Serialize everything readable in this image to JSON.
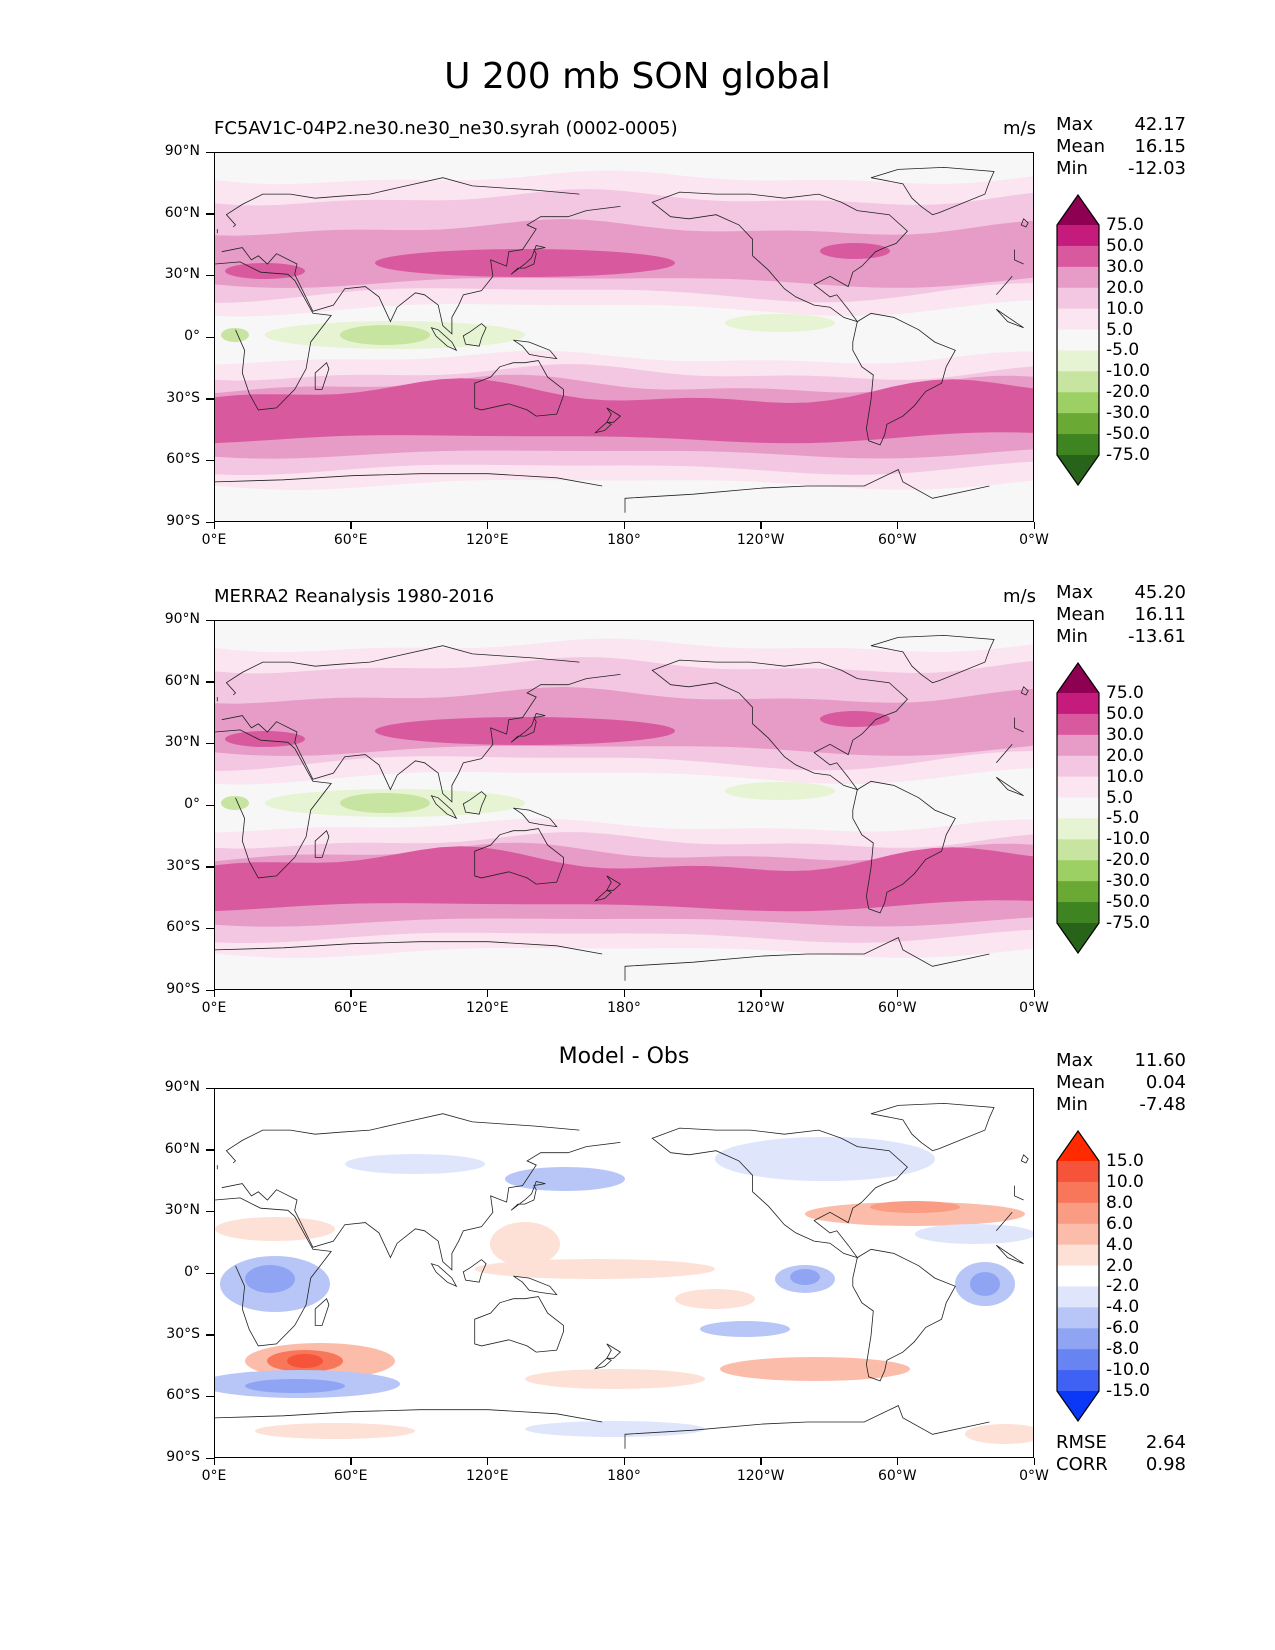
{
  "figure_title": "U 200 mb SON global",
  "panels": [
    {
      "id": "model",
      "title": "FC5AV1C-04P2.ne30.ne30_ne30.syrah (0002-0005)",
      "title_align": "left",
      "units": "m/s",
      "stats": [
        {
          "k": "Max",
          "v": "42.17"
        },
        {
          "k": "Mean",
          "v": "16.15"
        },
        {
          "k": "Min",
          "v": "-12.03"
        }
      ],
      "colorbar": {
        "levels": [
          "75.0",
          "50.0",
          "30.0",
          "20.0",
          "10.0",
          "5.0",
          "-5.0",
          "-10.0",
          "-20.0",
          "-30.0",
          "-50.0",
          "-75.0"
        ],
        "colors": [
          "#8e0152",
          "#c51b7d",
          "#d9599f",
          "#e79bc7",
          "#f3c6e1",
          "#fbe5f1",
          "#f7f7f7",
          "#e6f4d3",
          "#c7e5a0",
          "#9ccf64",
          "#6aaa34",
          "#3e8421",
          "#276419"
        ]
      }
    },
    {
      "id": "obs",
      "title": "MERRA2 Reanalysis 1980-2016",
      "title_align": "left",
      "units": "m/s",
      "stats": [
        {
          "k": "Max",
          "v": "45.20"
        },
        {
          "k": "Mean",
          "v": "16.11"
        },
        {
          "k": "Min",
          "v": "-13.61"
        }
      ],
      "colorbar": {
        "levels": [
          "75.0",
          "50.0",
          "30.0",
          "20.0",
          "10.0",
          "5.0",
          "-5.0",
          "-10.0",
          "-20.0",
          "-30.0",
          "-50.0",
          "-75.0"
        ],
        "colors": [
          "#8e0152",
          "#c51b7d",
          "#d9599f",
          "#e79bc7",
          "#f3c6e1",
          "#fbe5f1",
          "#f7f7f7",
          "#e6f4d3",
          "#c7e5a0",
          "#9ccf64",
          "#6aaa34",
          "#3e8421",
          "#276419"
        ]
      }
    },
    {
      "id": "diff",
      "title": "Model - Obs",
      "title_align": "center",
      "units": "",
      "stats": [
        {
          "k": "Max",
          "v": "11.60"
        },
        {
          "k": "Mean",
          "v": "0.04"
        },
        {
          "k": "Min",
          "v": "-7.48"
        }
      ],
      "colorbar": {
        "levels": [
          "15.0",
          "10.0",
          "8.0",
          "6.0",
          "4.0",
          "2.0",
          "-2.0",
          "-4.0",
          "-6.0",
          "-8.0",
          "-10.0",
          "-15.0"
        ],
        "colors": [
          "#ff2a00",
          "#f5533a",
          "#f8765a",
          "#fa9b84",
          "#fcbcaa",
          "#fde0d6",
          "#ffffff",
          "#dfe5fb",
          "#b8c6f7",
          "#8fa5f3",
          "#6884f2",
          "#3f62f4",
          "#0b38f7"
        ]
      },
      "extra": [
        {
          "k": "RMSE",
          "v": "2.64"
        },
        {
          "k": "CORR",
          "v": "0.98"
        }
      ]
    }
  ],
  "axes": {
    "lat_labels": [
      "90°N",
      "60°N",
      "30°N",
      "0°",
      "30°S",
      "60°S",
      "90°S"
    ],
    "lon_labels": [
      "0°E",
      "60°E",
      "120°E",
      "180°",
      "120°W",
      "60°W",
      "0°W"
    ]
  }
}
